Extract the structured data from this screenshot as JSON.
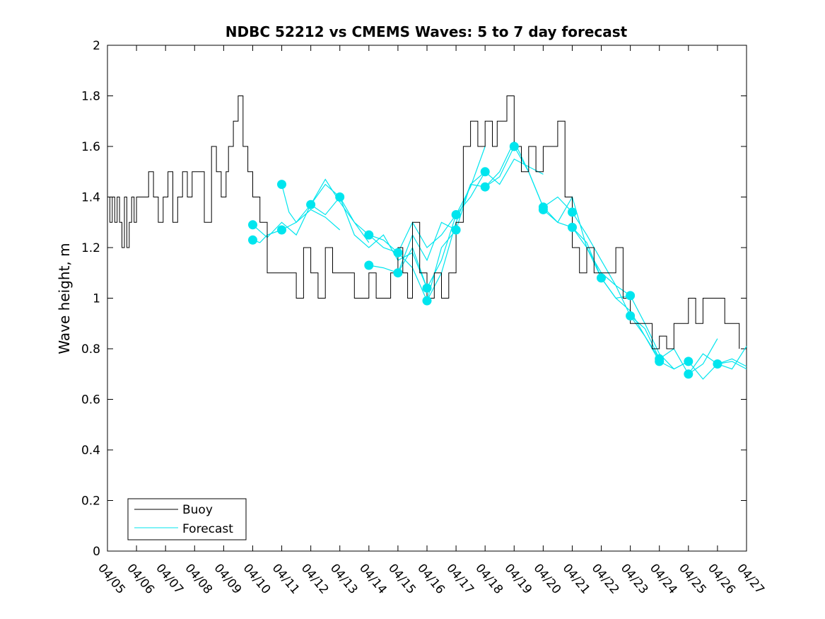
{
  "chart_data": {
    "type": "line",
    "title": "NDBC 52212 vs CMEMS Waves: 5 to 7 day forecast",
    "xlabel": "",
    "ylabel": "Wave height, m",
    "xlim": [
      "04/05",
      "04/27"
    ],
    "ylim": [
      0,
      2
    ],
    "x_ticks": [
      "04/05",
      "04/06",
      "04/07",
      "04/08",
      "04/09",
      "04/10",
      "04/11",
      "04/12",
      "04/13",
      "04/14",
      "04/15",
      "04/16",
      "04/17",
      "04/18",
      "04/19",
      "04/20",
      "04/21",
      "04/22",
      "04/23",
      "04/24",
      "04/25",
      "04/26",
      "04/27"
    ],
    "y_ticks": [
      "0",
      "0.2",
      "0.4",
      "0.6",
      "0.8",
      "1",
      "1.2",
      "1.4",
      "1.6",
      "1.8",
      "2"
    ],
    "grid": false,
    "legend": {
      "position": "bottom-left",
      "entries": [
        "Buoy",
        "Forecast"
      ]
    },
    "colors": {
      "buoy": "#000000",
      "forecast": "#00e5ee"
    },
    "series": [
      {
        "name": "Buoy",
        "x": [
          "04/05 00:00",
          "04/05 02:00",
          "04/05 04:00",
          "04/05 06:00",
          "04/05 08:00",
          "04/05 10:00",
          "04/05 12:00",
          "04/05 14:00",
          "04/05 16:00",
          "04/05 18:00",
          "04/05 20:00",
          "04/05 22:00",
          "04/06 00:00",
          "04/06 06:00",
          "04/06 10:00",
          "04/06 14:00",
          "04/06 18:00",
          "04/06 22:00",
          "04/07 02:00",
          "04/07 06:00",
          "04/07 10:00",
          "04/07 14:00",
          "04/07 18:00",
          "04/07 22:00",
          "04/08 04:00",
          "04/08 08:00",
          "04/08 14:00",
          "04/08 18:00",
          "04/08 22:00",
          "04/09 02:00",
          "04/09 04:00",
          "04/09 08:00",
          "04/09 12:00",
          "04/09 16:00",
          "04/09 20:00",
          "04/10 00:00",
          "04/10 06:00",
          "04/10 12:00",
          "04/11 00:00",
          "04/11 12:00",
          "04/11 18:00",
          "04/12 00:00",
          "04/12 06:00",
          "04/12 12:00",
          "04/12 18:00",
          "04/13 00:00",
          "04/13 12:00",
          "04/14 00:00",
          "04/14 06:00",
          "04/14 12:00",
          "04/14 18:00",
          "04/15 00:00",
          "04/15 04:00",
          "04/15 08:00",
          "04/15 12:00",
          "04/15 18:00",
          "04/16 00:00",
          "04/16 06:00",
          "04/16 12:00",
          "04/16 18:00",
          "04/17 00:00",
          "04/17 06:00",
          "04/17 12:00",
          "04/17 18:00",
          "04/18 00:00",
          "04/18 06:00",
          "04/18 10:00",
          "04/18 14:00",
          "04/18 18:00",
          "04/19 00:00",
          "04/19 06:00",
          "04/19 12:00",
          "04/19 18:00",
          "04/20 00:00",
          "04/20 06:00",
          "04/20 12:00",
          "04/20 18:00",
          "04/21 00:00",
          "04/21 06:00",
          "04/21 12:00",
          "04/21 18:00",
          "04/22 00:00",
          "04/22 06:00",
          "04/22 12:00",
          "04/22 18:00",
          "04/23 00:00",
          "04/23 06:00",
          "04/23 12:00",
          "04/23 18:00",
          "04/24 00:00",
          "04/24 06:00",
          "04/24 12:00",
          "04/24 18:00",
          "04/25 00:00",
          "04/25 06:00",
          "04/25 12:00",
          "04/25 18:00",
          "04/26 00:00",
          "04/26 06:00",
          "04/26 12:00",
          "04/26 18:00"
        ],
        "y": [
          1.4,
          1.3,
          1.4,
          1.3,
          1.4,
          1.3,
          1.2,
          1.4,
          1.2,
          1.3,
          1.4,
          1.3,
          1.4,
          1.4,
          1.5,
          1.4,
          1.3,
          1.4,
          1.5,
          1.3,
          1.4,
          1.5,
          1.4,
          1.5,
          1.5,
          1.3,
          1.6,
          1.5,
          1.4,
          1.5,
          1.6,
          1.7,
          1.8,
          1.6,
          1.5,
          1.4,
          1.3,
          1.1,
          1.1,
          1.0,
          1.2,
          1.1,
          1.0,
          1.2,
          1.1,
          1.1,
          1.0,
          1.1,
          1.0,
          1.0,
          1.1,
          1.2,
          1.1,
          1.0,
          1.3,
          1.1,
          1.0,
          1.1,
          1.0,
          1.1,
          1.3,
          1.6,
          1.7,
          1.6,
          1.7,
          1.6,
          1.7,
          1.7,
          1.8,
          1.6,
          1.5,
          1.6,
          1.5,
          1.6,
          1.6,
          1.7,
          1.4,
          1.2,
          1.1,
          1.2,
          1.1,
          1.1,
          1.1,
          1.2,
          1.0,
          0.9,
          0.9,
          0.9,
          0.8,
          0.85,
          0.8,
          0.9,
          0.9,
          1.0,
          0.9,
          1.0,
          1.0,
          1.0,
          0.9,
          0.9,
          0.8
        ]
      },
      {
        "name": "Forecast",
        "segments": [
          {
            "x": [
              "04/10 00:00",
              "04/10 06:00",
              "04/10 12:00",
              "04/11 00:00",
              "04/11 12:00",
              "04/12 00:00",
              "04/12 12:00",
              "04/13 00:00"
            ],
            "y": [
              1.23,
              1.22,
              1.25,
              1.27,
              1.3,
              1.35,
              1.32,
              1.27
            ]
          },
          {
            "x": [
              "04/10 00:00",
              "04/10 12:00",
              "04/11 00:00",
              "04/11 12:00",
              "04/12 00:00",
              "04/12 12:00",
              "04/13 00:00"
            ],
            "y": [
              1.29,
              1.24,
              1.3,
              1.25,
              1.37,
              1.45,
              1.4
            ]
          },
          {
            "x": [
              "04/11 00:00",
              "04/11 06:00",
              "04/11 12:00",
              "04/12 00:00",
              "04/12 12:00",
              "04/13 00:00",
              "04/13 12:00",
              "04/14 00:00"
            ],
            "y": [
              1.45,
              1.34,
              1.3,
              1.37,
              1.47,
              1.38,
              1.3,
              1.22
            ]
          },
          {
            "x": [
              "04/12 00:00",
              "04/12 12:00",
              "04/13 00:00",
              "04/13 12:00",
              "04/14 00:00",
              "04/14 12:00",
              "04/15 00:00"
            ],
            "y": [
              1.37,
              1.33,
              1.4,
              1.3,
              1.25,
              1.2,
              1.18
            ]
          },
          {
            "x": [
              "04/13 00:00",
              "04/13 12:00",
              "04/14 00:00",
              "04/14 12:00",
              "04/15 00:00",
              "04/15 12:00",
              "04/16 00:00"
            ],
            "y": [
              1.4,
              1.25,
              1.2,
              1.25,
              1.15,
              1.18,
              1.04
            ]
          },
          {
            "x": [
              "04/14 00:00",
              "04/14 12:00",
              "04/15 00:00",
              "04/15 12:00",
              "04/16 00:00",
              "04/16 12:00",
              "04/17 00:00"
            ],
            "y": [
              1.25,
              1.23,
              1.18,
              1.3,
              1.2,
              1.25,
              1.33
            ]
          },
          {
            "x": [
              "04/14 00:00",
              "04/14 12:00",
              "04/15 00:00",
              "04/15 12:00",
              "04/16 00:00",
              "04/16 12:00",
              "04/17 00:00"
            ],
            "y": [
              1.13,
              1.12,
              1.1,
              1.25,
              1.15,
              1.3,
              1.27
            ]
          },
          {
            "x": [
              "04/15 00:00",
              "04/15 12:00",
              "04/16 00:00",
              "04/16 12:00",
              "04/17 00:00",
              "04/17 12:00",
              "04/18 00:00"
            ],
            "y": [
              1.18,
              1.12,
              0.99,
              1.1,
              1.3,
              1.45,
              1.5
            ]
          },
          {
            "x": [
              "04/15 00:00",
              "04/15 12:00",
              "04/16 00:00",
              "04/16 12:00",
              "04/17 00:00",
              "04/17 12:00",
              "04/18 00:00"
            ],
            "y": [
              1.1,
              1.2,
              1.04,
              1.15,
              1.33,
              1.44,
              1.6
            ]
          },
          {
            "x": [
              "04/16 00:00",
              "04/16 12:00",
              "04/17 00:00",
              "04/17 12:00",
              "04/18 00:00",
              "04/18 12:00",
              "04/19 00:00"
            ],
            "y": [
              0.99,
              1.2,
              1.27,
              1.45,
              1.44,
              1.48,
              1.6
            ]
          },
          {
            "x": [
              "04/17 00:00",
              "04/17 12:00",
              "04/18 00:00",
              "04/18 12:00",
              "04/19 00:00",
              "04/19 12:00",
              "04/20 00:00"
            ],
            "y": [
              1.33,
              1.4,
              1.5,
              1.45,
              1.55,
              1.52,
              1.49
            ]
          },
          {
            "x": [
              "04/18 00:00",
              "04/18 12:00",
              "04/19 00:00",
              "04/19 12:00",
              "04/20 00:00",
              "04/20 12:00",
              "04/21 00:00"
            ],
            "y": [
              1.44,
              1.5,
              1.62,
              1.5,
              1.36,
              1.4,
              1.34
            ]
          },
          {
            "x": [
              "04/19 00:00",
              "04/19 12:00",
              "04/20 00:00",
              "04/20 12:00",
              "04/21 00:00",
              "04/21 12:00",
              "04/22 00:00"
            ],
            "y": [
              1.6,
              1.5,
              1.36,
              1.3,
              1.28,
              1.2,
              1.08
            ]
          },
          {
            "x": [
              "04/20 00:00",
              "04/20 12:00",
              "04/21 00:00",
              "04/21 12:00",
              "04/22 00:00",
              "04/22 12:00",
              "04/23 00:00"
            ],
            "y": [
              1.35,
              1.3,
              1.4,
              1.2,
              1.1,
              1.05,
              1.01
            ]
          },
          {
            "x": [
              "04/21 00:00",
              "04/21 12:00",
              "04/22 00:00",
              "04/22 12:00",
              "04/23 00:00",
              "04/23 12:00",
              "04/24 00:00"
            ],
            "y": [
              1.34,
              1.25,
              1.15,
              1.05,
              0.93,
              0.88,
              0.76
            ]
          },
          {
            "x": [
              "04/21 00:00",
              "04/21 12:00",
              "04/22 00:00",
              "04/22 12:00",
              "04/23 00:00",
              "04/23 12:00",
              "04/24 00:00"
            ],
            "y": [
              1.28,
              1.22,
              1.08,
              1.0,
              0.95,
              0.85,
              0.75
            ]
          },
          {
            "x": [
              "04/22 00:00",
              "04/22 12:00",
              "04/23 00:00",
              "04/23 12:00",
              "04/24 00:00",
              "04/24 12:00",
              "04/25 00:00"
            ],
            "y": [
              1.08,
              1.0,
              1.01,
              0.9,
              0.78,
              0.72,
              0.75
            ]
          },
          {
            "x": [
              "04/23 00:00",
              "04/23 12:00",
              "04/24 00:00",
              "04/24 12:00",
              "04/25 00:00",
              "04/25 12:00",
              "04/26 00:00"
            ],
            "y": [
              0.93,
              0.85,
              0.76,
              0.8,
              0.7,
              0.74,
              0.84
            ]
          },
          {
            "x": [
              "04/24 00:00",
              "04/24 12:00",
              "04/25 00:00",
              "04/25 12:00",
              "04/26 00:00",
              "04/26 12:00",
              "04/27 00:00"
            ],
            "y": [
              0.75,
              0.72,
              0.75,
              0.68,
              0.74,
              0.72,
              0.81
            ]
          },
          {
            "x": [
              "04/25 00:00",
              "04/25 12:00",
              "04/26 00:00",
              "04/26 12:00",
              "04/27 00:00"
            ],
            "y": [
              0.7,
              0.78,
              0.74,
              0.75,
              0.72
            ]
          },
          {
            "x": [
              "04/26 00:00",
              "04/26 12:00",
              "04/27 00:00"
            ],
            "y": [
              0.74,
              0.76,
              0.73
            ]
          }
        ],
        "markers": {
          "x": [
            "04/10 00:00",
            "04/10 00:00",
            "04/11 00:00",
            "04/11 00:00",
            "04/12 00:00",
            "04/13 00:00",
            "04/14 00:00",
            "04/14 00:00",
            "04/15 00:00",
            "04/15 00:00",
            "04/16 00:00",
            "04/16 00:00",
            "04/17 00:00",
            "04/17 00:00",
            "04/18 00:00",
            "04/18 00:00",
            "04/19 00:00",
            "04/20 00:00",
            "04/20 00:00",
            "04/21 00:00",
            "04/21 00:00",
            "04/22 00:00",
            "04/23 00:00",
            "04/23 00:00",
            "04/24 00:00",
            "04/24 00:00",
            "04/25 00:00",
            "04/25 00:00",
            "04/26 00:00"
          ],
          "y": [
            1.29,
            1.23,
            1.45,
            1.27,
            1.37,
            1.4,
            1.25,
            1.13,
            1.18,
            1.1,
            1.04,
            0.99,
            1.33,
            1.27,
            1.5,
            1.44,
            1.6,
            1.36,
            1.35,
            1.34,
            1.28,
            1.08,
            1.01,
            0.93,
            0.76,
            0.75,
            0.75,
            0.7,
            0.74
          ]
        }
      }
    ]
  }
}
